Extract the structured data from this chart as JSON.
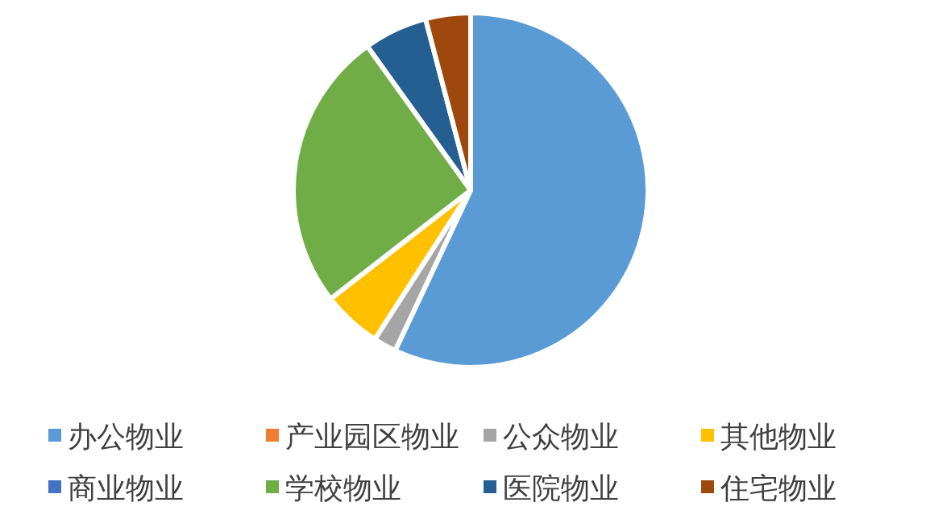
{
  "chart_data": {
    "type": "pie",
    "categories": [
      "办公物业",
      "产业园区物业",
      "公众物业",
      "其他物业",
      "商业物业",
      "学校物业",
      "医院物业",
      "住宅物业"
    ],
    "values": [
      57,
      0,
      2.1,
      5.4,
      0,
      25.6,
      5.8,
      4.1
    ],
    "colors": [
      "#5b9bd5",
      "#ed7d31",
      "#a5a5a5",
      "#ffc000",
      "#4472c4",
      "#70ad47",
      "#255e91",
      "#9e480e"
    ],
    "legend": "bottom"
  }
}
